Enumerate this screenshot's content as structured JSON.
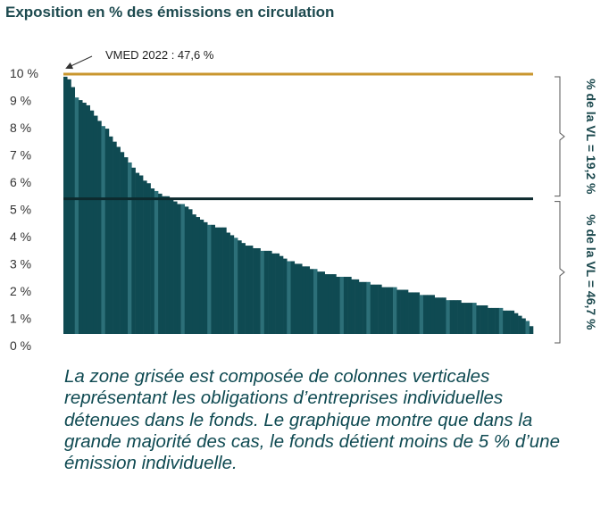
{
  "chart_data": {
    "type": "bar",
    "title": "Exposition en % des émissions en circulation",
    "y_tick_labels": [
      "0 %",
      "1 %",
      "2 %",
      "3 %",
      "4 %",
      "5 %",
      "6 %",
      "7 %",
      "8 %",
      "9 %",
      "10 %"
    ],
    "ylim": [
      0,
      10
    ],
    "values": [
      9.9,
      9.8,
      9.5,
      9.1,
      9.0,
      8.9,
      8.8,
      8.6,
      8.4,
      8.2,
      8.0,
      7.9,
      7.6,
      7.4,
      7.2,
      7.0,
      6.8,
      6.6,
      6.4,
      6.2,
      6.1,
      5.9,
      5.8,
      5.6,
      5.5,
      5.4,
      5.3,
      5.3,
      5.2,
      5.1,
      5.0,
      5.0,
      4.9,
      4.8,
      4.6,
      4.5,
      4.4,
      4.3,
      4.2,
      4.2,
      4.1,
      4.1,
      4.1,
      3.9,
      3.8,
      3.7,
      3.6,
      3.5,
      3.4,
      3.4,
      3.3,
      3.3,
      3.2,
      3.2,
      3.2,
      3.1,
      3.1,
      3.0,
      2.9,
      2.8,
      2.8,
      2.7,
      2.7,
      2.6,
      2.6,
      2.5,
      2.5,
      2.4,
      2.4,
      2.3,
      2.3,
      2.3,
      2.2,
      2.2,
      2.2,
      2.2,
      2.1,
      2.1,
      2.0,
      2.0,
      2.0,
      1.9,
      1.9,
      1.9,
      1.8,
      1.8,
      1.8,
      1.8,
      1.7,
      1.7,
      1.7,
      1.6,
      1.6,
      1.6,
      1.5,
      1.5,
      1.5,
      1.5,
      1.4,
      1.4,
      1.4,
      1.3,
      1.3,
      1.3,
      1.3,
      1.2,
      1.2,
      1.2,
      1.2,
      1.1,
      1.1,
      1.1,
      1.0,
      1.0,
      1.0,
      1.0,
      0.9,
      0.9,
      0.9,
      0.8,
      0.7,
      0.6,
      0.5,
      0.3
    ],
    "reference_lines": [
      {
        "value": 10,
        "color": "#c9962e"
      },
      {
        "value": 5.2,
        "color": "#0d2a2e"
      }
    ],
    "annotation": "VMED 2022 : 47,6 %",
    "brackets": [
      {
        "label": "% de la VL = 19,2 %",
        "range": [
          5.2,
          10
        ]
      },
      {
        "label": "% de la VL = 46,7 %",
        "range": [
          0,
          5.2
        ]
      }
    ],
    "bar_color": "#0f4a52",
    "bar_highlight": "#2c6f78"
  },
  "caption": "La zone grisée est composée de colonnes verticales représentant les obligations d’entreprises individuelles détenues dans le fonds. Le graphique montre que dans la grande majorité des cas, le fonds détient moins de 5 % d’une émission individuelle."
}
